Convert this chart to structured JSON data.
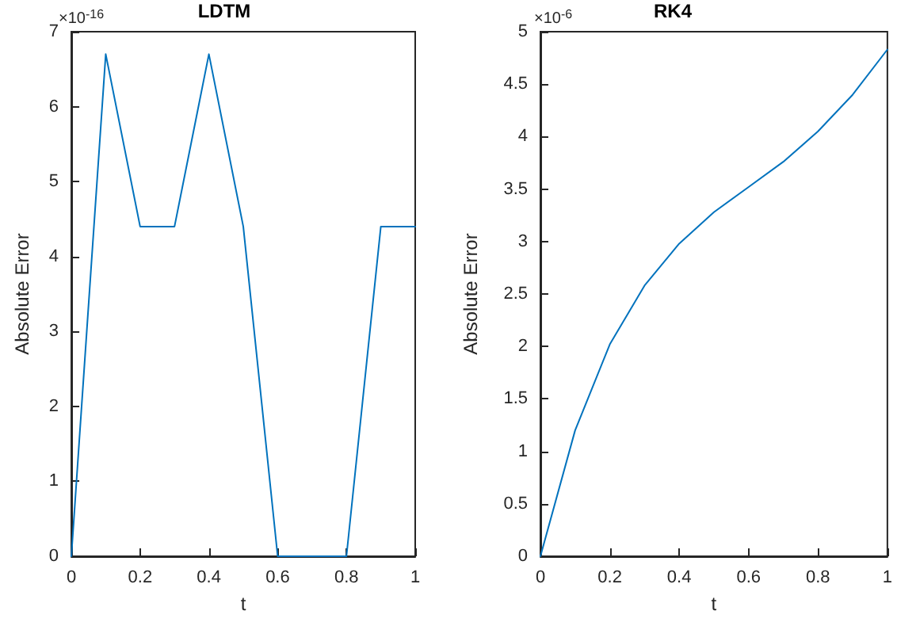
{
  "chart_data": [
    {
      "type": "line",
      "title": "LDTM",
      "xlabel": "t",
      "ylabel": "Absolute Error",
      "color": "#0072bd",
      "marker": "none",
      "annotations": [
        "×10$^{-16}$"
      ],
      "x": [
        0,
        0.1,
        0.2,
        0.3,
        0.4,
        0.5,
        0.6,
        0.7,
        0.8,
        0.9,
        1
      ],
      "values": [
        0,
        6.7,
        4.4,
        4.4,
        6.7,
        4.4,
        0,
        0,
        0,
        4.4,
        4.4
      ],
      "xlim": [
        0,
        1
      ],
      "xticks": [
        0,
        0.2,
        0.4,
        0.6,
        0.8,
        1
      ],
      "ylim": [
        0,
        7
      ],
      "yticks": [
        0,
        1,
        2,
        3,
        4,
        5,
        6,
        7
      ]
    },
    {
      "type": "line",
      "title": "RK4",
      "xlabel": "t",
      "ylabel": "Absolute Error",
      "color": "#0072bd",
      "marker": "none",
      "annotations": [
        "×10$^{-6}$"
      ],
      "x": [
        0,
        0.1,
        0.2,
        0.3,
        0.4,
        0.5,
        0.6,
        0.7,
        0.8,
        0.9,
        1
      ],
      "values": [
        0,
        1.2,
        2.02,
        2.58,
        2.98,
        3.28,
        3.52,
        3.76,
        4.05,
        4.4,
        4.83
      ],
      "xlim": [
        0,
        1
      ],
      "xticks": [
        0,
        0.2,
        0.4,
        0.6,
        0.8,
        1
      ],
      "ylim": [
        0,
        5
      ],
      "yticks": [
        0,
        0.5,
        1,
        1.5,
        2,
        2.5,
        3,
        3.5,
        4,
        4.5,
        5
      ]
    }
  ]
}
